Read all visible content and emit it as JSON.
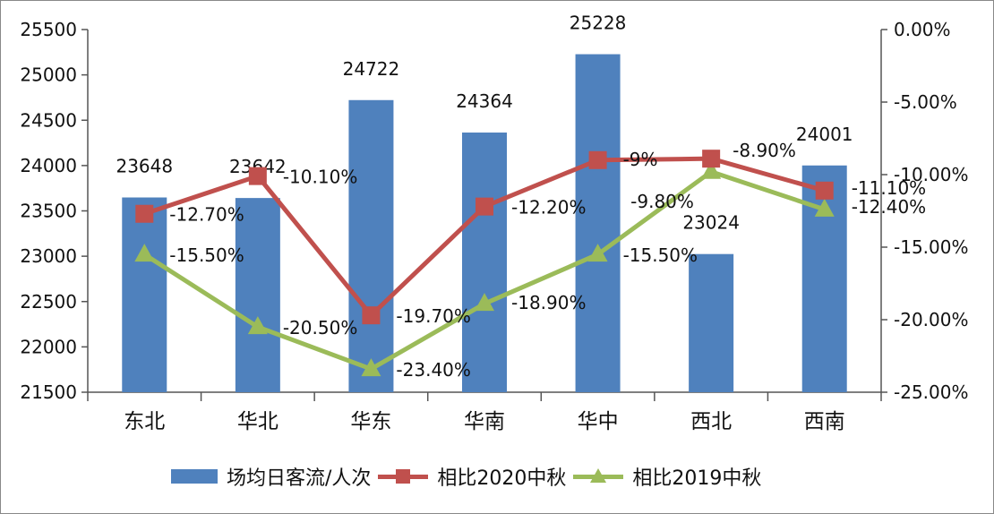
{
  "chart_data": {
    "type": "bar+line",
    "title": "",
    "categories": [
      "东北",
      "华北",
      "华东",
      "华南",
      "华中",
      "西北",
      "西南"
    ],
    "series": [
      {
        "name": "场均日客流/人次",
        "type": "bar",
        "axis": "left",
        "color": "#4f81bd",
        "values": [
          23648,
          23642,
          24722,
          24364,
          25228,
          23024,
          24001
        ],
        "labels": [
          "23648",
          "23642",
          "24722",
          "24364",
          "25228",
          "23024",
          "24001"
        ]
      },
      {
        "name": "相比2020中秋",
        "type": "line",
        "axis": "right",
        "color": "#c0504d",
        "marker": "square",
        "values": [
          -12.7,
          -10.1,
          -19.7,
          -12.2,
          -9.0,
          -8.9,
          -11.1
        ],
        "labels": [
          "-12.70%",
          "-10.10%",
          "-19.70%",
          "-12.20%",
          "-9%",
          "-8.90%",
          "-11.10%"
        ]
      },
      {
        "name": "相比2019中秋",
        "type": "line",
        "axis": "right",
        "color": "#9bbb59",
        "marker": "triangle",
        "values": [
          -15.5,
          -20.5,
          -23.4,
          -18.9,
          -15.5,
          -9.8,
          -12.4
        ],
        "labels": [
          "-15.50%",
          "-20.50%",
          "-23.40%",
          "-18.90%",
          "-15.50%",
          "-9.80%",
          "-12.40%"
        ]
      }
    ],
    "left_axis": {
      "label": "",
      "ylim": [
        21500,
        25500
      ],
      "ticks": [
        "25500",
        "25000",
        "24500",
        "24000",
        "23500",
        "23000",
        "22500",
        "22000",
        "21500"
      ]
    },
    "right_axis": {
      "label": "",
      "ylim": [
        -25,
        0
      ],
      "ticks": [
        "0.00%",
        "-5.00%",
        "-10.00%",
        "-15.00%",
        "-20.00%",
        "-25.00%"
      ]
    },
    "xlabel": "",
    "grid": false,
    "legend_position": "bottom"
  },
  "legend": {
    "items": [
      "场均日客流/人次",
      "相比2020中秋",
      "相比2019中秋"
    ]
  }
}
